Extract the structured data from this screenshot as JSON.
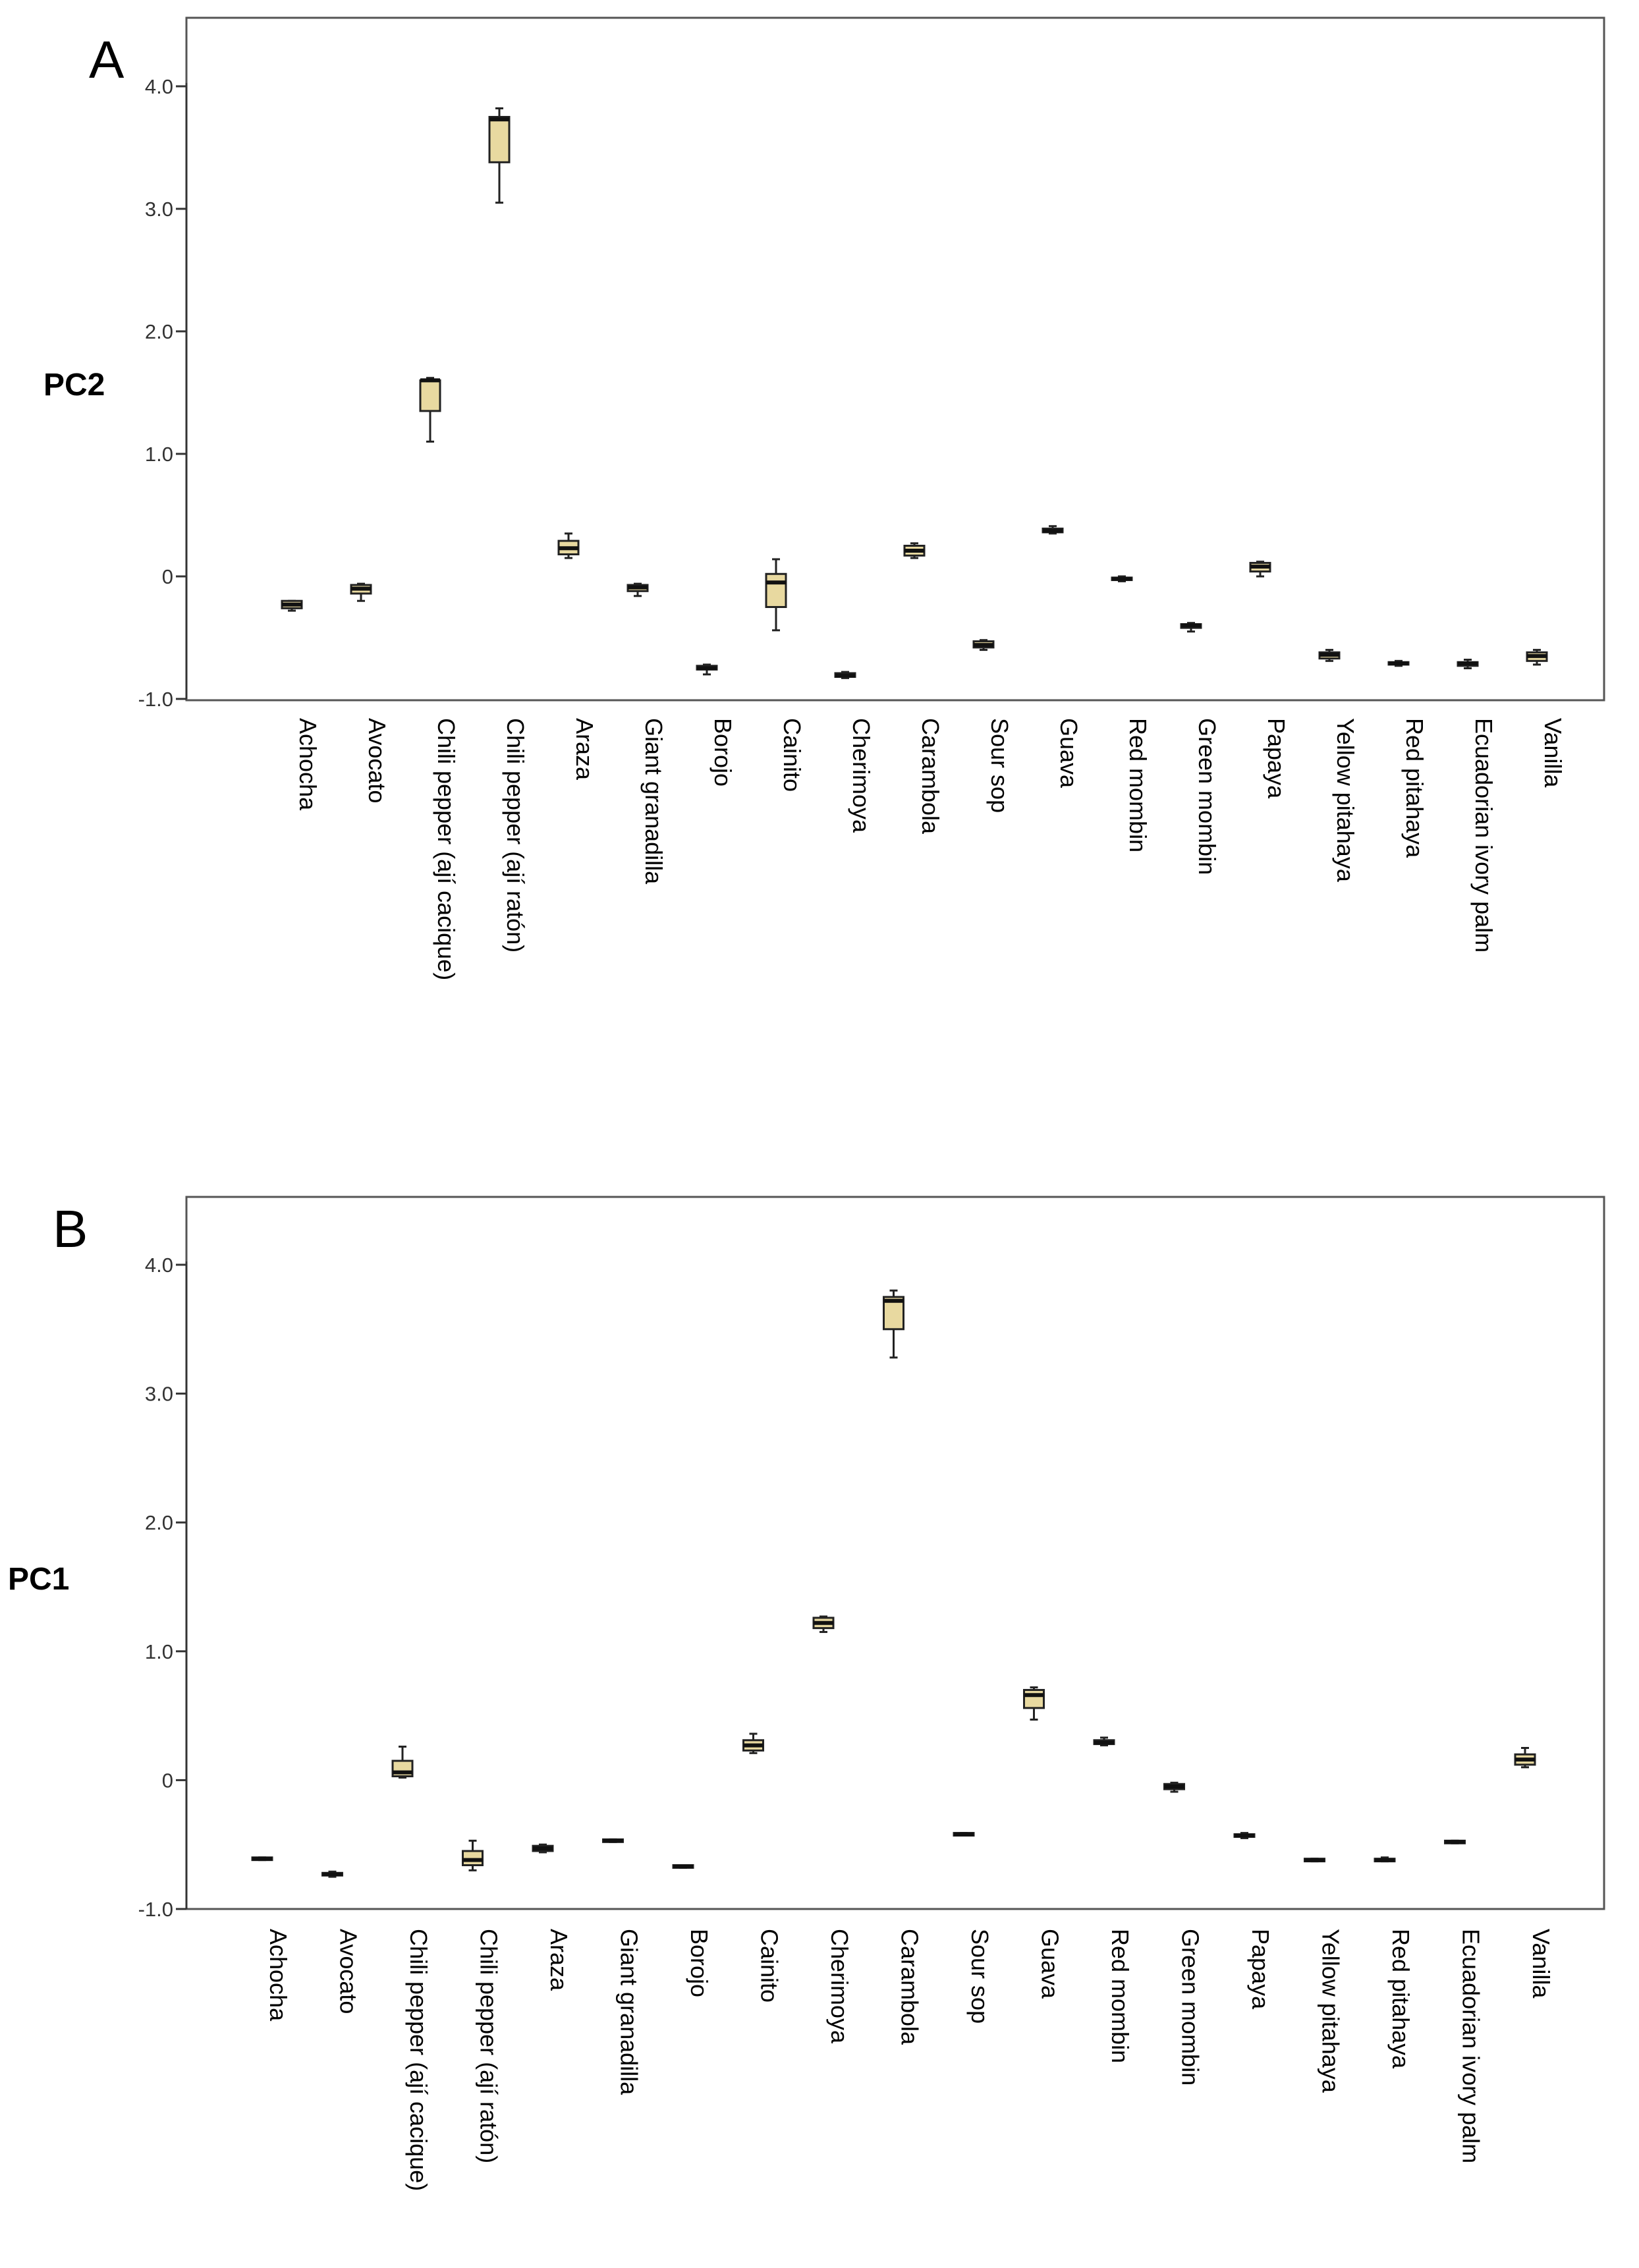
{
  "chart_data": [
    {
      "panel": "A",
      "type": "boxplot",
      "ylabel": "PC2",
      "xlabel": "",
      "ylim": [
        -1.0,
        4.5
      ],
      "yticks": [
        4.0,
        3.0,
        2.0,
        1.0,
        0,
        -1.0
      ],
      "ytick_labels": [
        "4.0",
        "3.0",
        "2.0",
        "1.0",
        "0",
        "-1.0"
      ],
      "box_color": "#e8d9a0",
      "categories": [
        "Achocha",
        "Avocato",
        "Chili pepper (ají cacique)",
        "Chili pepper (ají ratón)",
        "Araza",
        "Giant granadilla",
        "Borojo",
        "Cainito",
        "Cherimoya",
        "Carambola",
        "Sour sop",
        "Guava",
        "Red mombin",
        "Green mombin",
        "Papaya",
        "Yellow pitahaya",
        "Red pitahaya",
        "Ecuadorian ivory palm",
        "Vanilla"
      ],
      "boxes": [
        {
          "min": -0.28,
          "q1": -0.26,
          "median": -0.23,
          "q3": -0.2,
          "max": -0.2
        },
        {
          "min": -0.2,
          "q1": -0.14,
          "median": -0.1,
          "q3": -0.07,
          "max": -0.06
        },
        {
          "min": 1.1,
          "q1": 1.35,
          "median": 1.6,
          "q3": 1.6,
          "max": 1.62
        },
        {
          "min": 3.05,
          "q1": 3.38,
          "median": 3.73,
          "q3": 3.75,
          "max": 3.82
        },
        {
          "min": 0.15,
          "q1": 0.18,
          "median": 0.23,
          "q3": 0.29,
          "max": 0.35
        },
        {
          "min": -0.16,
          "q1": -0.12,
          "median": -0.09,
          "q3": -0.07,
          "max": -0.06
        },
        {
          "min": -0.8,
          "q1": -0.76,
          "median": -0.75,
          "q3": -0.73,
          "max": -0.72
        },
        {
          "min": -0.44,
          "q1": -0.25,
          "median": -0.05,
          "q3": 0.02,
          "max": 0.14
        },
        {
          "min": -0.83,
          "q1": -0.82,
          "median": -0.81,
          "q3": -0.79,
          "max": -0.78
        },
        {
          "min": 0.15,
          "q1": 0.17,
          "median": 0.21,
          "q3": 0.25,
          "max": 0.27
        },
        {
          "min": -0.6,
          "q1": -0.58,
          "median": -0.56,
          "q3": -0.53,
          "max": -0.52
        },
        {
          "min": 0.35,
          "q1": 0.36,
          "median": 0.37,
          "q3": 0.39,
          "max": 0.41
        },
        {
          "min": -0.04,
          "q1": -0.03,
          "median": -0.02,
          "q3": -0.01,
          "max": 0.0
        },
        {
          "min": -0.45,
          "q1": -0.42,
          "median": -0.4,
          "q3": -0.39,
          "max": -0.38
        },
        {
          "min": 0.0,
          "q1": 0.04,
          "median": 0.08,
          "q3": 0.11,
          "max": 0.12
        },
        {
          "min": -0.69,
          "q1": -0.67,
          "median": -0.64,
          "q3": -0.62,
          "max": -0.6
        },
        {
          "min": -0.73,
          "q1": -0.72,
          "median": -0.71,
          "q3": -0.7,
          "max": -0.69
        },
        {
          "min": -0.75,
          "q1": -0.73,
          "median": -0.71,
          "q3": -0.7,
          "max": -0.68
        },
        {
          "min": -0.72,
          "q1": -0.69,
          "median": -0.65,
          "q3": -0.62,
          "max": -0.6
        }
      ]
    },
    {
      "panel": "B",
      "type": "boxplot",
      "ylabel": "PC1",
      "xlabel": "",
      "ylim": [
        -1.0,
        4.5
      ],
      "yticks": [
        4.0,
        3.0,
        2.0,
        1.0,
        0,
        -1.0
      ],
      "ytick_labels": [
        "4.0",
        "3.0",
        "2.0",
        "1.0",
        "0",
        "-1.0"
      ],
      "box_color": "#e8d9a0",
      "categories": [
        "Achocha",
        "Avocato",
        "Chili pepper (ají cacique)",
        "Chili pepper (ají ratón)",
        "Araza",
        "Giant granadilla",
        "Borojo",
        "Cainito",
        "Cherimoya",
        "Carambola",
        "Sour sop",
        "Guava",
        "Red mombin",
        "Green mombin",
        "Papaya",
        "Yellow pitahaya",
        "Red pitahaya",
        "Ecuadorian ivory palm",
        "Vanilla"
      ],
      "boxes": [
        {
          "min": -0.62,
          "q1": -0.62,
          "median": -0.61,
          "q3": -0.6,
          "max": -0.6
        },
        {
          "min": -0.75,
          "q1": -0.74,
          "median": -0.73,
          "q3": -0.72,
          "max": -0.71
        },
        {
          "min": 0.02,
          "q1": 0.03,
          "median": 0.06,
          "q3": 0.15,
          "max": 0.26
        },
        {
          "min": -0.7,
          "q1": -0.66,
          "median": -0.62,
          "q3": -0.55,
          "max": -0.47
        },
        {
          "min": -0.56,
          "q1": -0.55,
          "median": -0.53,
          "q3": -0.51,
          "max": -0.5
        },
        {
          "min": -0.48,
          "q1": -0.48,
          "median": -0.47,
          "q3": -0.46,
          "max": -0.46
        },
        {
          "min": -0.68,
          "q1": -0.68,
          "median": -0.67,
          "q3": -0.66,
          "max": -0.66
        },
        {
          "min": 0.21,
          "q1": 0.23,
          "median": 0.27,
          "q3": 0.31,
          "max": 0.36
        },
        {
          "min": 1.15,
          "q1": 1.18,
          "median": 1.22,
          "q3": 1.26,
          "max": 1.27
        },
        {
          "min": 3.28,
          "q1": 3.5,
          "median": 3.72,
          "q3": 3.75,
          "max": 3.8
        },
        {
          "min": -0.43,
          "q1": -0.43,
          "median": -0.42,
          "q3": -0.41,
          "max": -0.41
        },
        {
          "min": 0.47,
          "q1": 0.56,
          "median": 0.66,
          "q3": 0.7,
          "max": 0.72
        },
        {
          "min": 0.27,
          "q1": 0.28,
          "median": 0.29,
          "q3": 0.31,
          "max": 0.33
        },
        {
          "min": -0.09,
          "q1": -0.07,
          "median": -0.05,
          "q3": -0.03,
          "max": -0.02
        },
        {
          "min": -0.45,
          "q1": -0.44,
          "median": -0.43,
          "q3": -0.42,
          "max": -0.41
        },
        {
          "min": -0.63,
          "q1": -0.63,
          "median": -0.62,
          "q3": -0.61,
          "max": -0.61
        },
        {
          "min": -0.63,
          "q1": -0.63,
          "median": -0.62,
          "q3": -0.61,
          "max": -0.6
        },
        {
          "min": -0.49,
          "q1": -0.49,
          "median": -0.48,
          "q3": -0.47,
          "max": -0.47
        },
        {
          "min": 0.1,
          "q1": 0.12,
          "median": 0.16,
          "q3": 0.2,
          "max": 0.25
        }
      ]
    }
  ]
}
